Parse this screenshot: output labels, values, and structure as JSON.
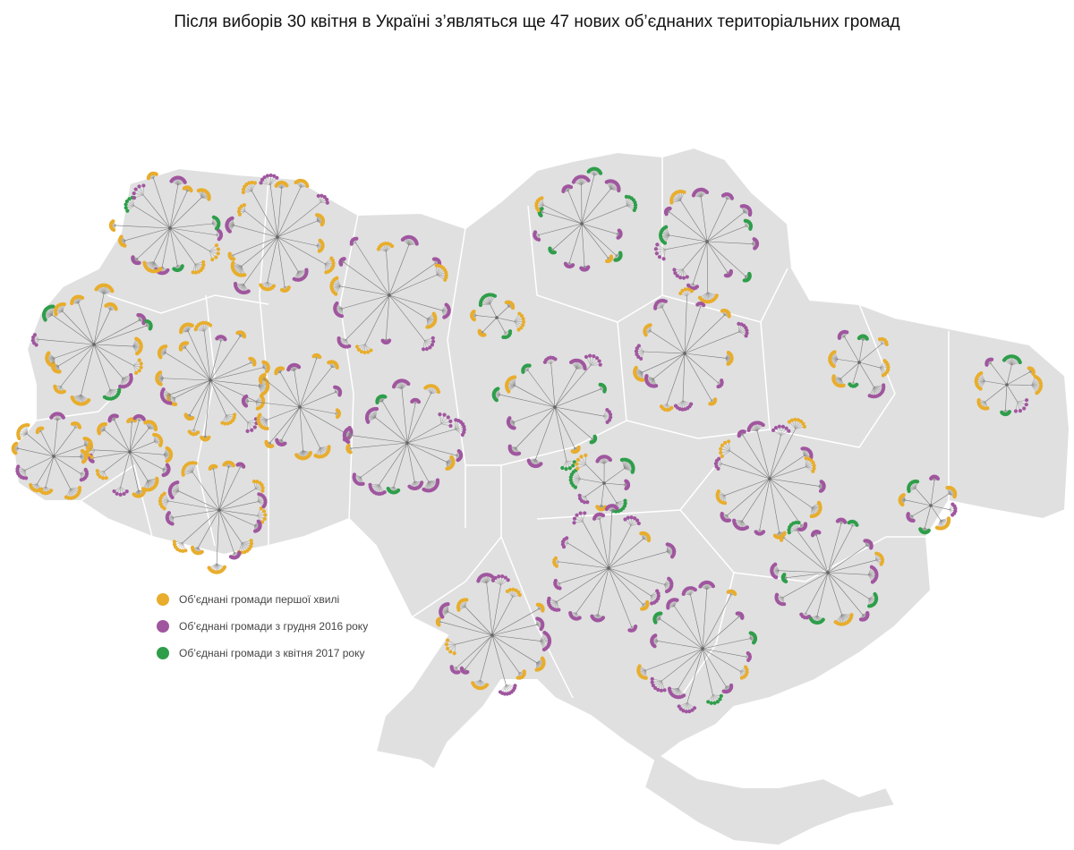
{
  "title": "Після виборів 30 квітня в Україні з’являться ще 47 нових об’єднаних територіальних громад",
  "colors": {
    "first_wave": "#e8ad2c",
    "dec_2016": "#a0569f",
    "apr_2017": "#2e9e4a",
    "territory": "#e0e0e0",
    "border": "#ffffff",
    "line": "#777777"
  },
  "legend": [
    {
      "label": "Об’єднані громади першої хвилі",
      "color": "#e8ad2c"
    },
    {
      "label": "Об’єднані громади з грудня 2016 року",
      "color": "#a0569f"
    },
    {
      "label": "Об’єднані громади з квітня 2017 року",
      "color": "#2e9e4a"
    }
  ],
  "clusters": [
    {
      "region": "volyn",
      "mix": [
        "dec_2016",
        "first_wave",
        "first_wave",
        "apr_2017",
        "dec_2016",
        "first_wave"
      ]
    },
    {
      "region": "rivne",
      "mix": [
        "first_wave",
        "first_wave",
        "dec_2016",
        "first_wave",
        "first_wave",
        "dec_2016"
      ]
    },
    {
      "region": "zhytomyr",
      "mix": [
        "dec_2016",
        "first_wave",
        "dec_2016",
        "dec_2016",
        "first_wave",
        "dec_2016"
      ]
    },
    {
      "region": "lviv",
      "mix": [
        "first_wave",
        "first_wave",
        "dec_2016",
        "apr_2017",
        "first_wave",
        "first_wave"
      ]
    },
    {
      "region": "ternopil",
      "mix": [
        "first_wave",
        "first_wave",
        "dec_2016",
        "first_wave",
        "first_wave",
        "first_wave"
      ]
    },
    {
      "region": "khmelnytskyi",
      "mix": [
        "first_wave",
        "dec_2016",
        "first_wave",
        "first_wave",
        "dec_2016",
        "first_wave"
      ]
    },
    {
      "region": "vinnytsia",
      "mix": [
        "dec_2016",
        "first_wave",
        "dec_2016",
        "dec_2016",
        "apr_2017",
        "dec_2016"
      ]
    },
    {
      "region": "zakarpattia",
      "mix": [
        "first_wave",
        "dec_2016",
        "first_wave",
        "first_wave"
      ]
    },
    {
      "region": "ivano-frankivsk",
      "mix": [
        "first_wave",
        "dec_2016",
        "first_wave",
        "first_wave",
        "dec_2016"
      ]
    },
    {
      "region": "chernivtsi",
      "mix": [
        "first_wave",
        "dec_2016",
        "first_wave",
        "dec_2016",
        "first_wave",
        "first_wave"
      ]
    },
    {
      "region": "kyiv",
      "mix": [
        "first_wave",
        "apr_2017",
        "first_wave"
      ]
    },
    {
      "region": "chernihiv",
      "mix": [
        "dec_2016",
        "apr_2017",
        "first_wave",
        "dec_2016",
        "dec_2016",
        "apr_2017"
      ]
    },
    {
      "region": "sumy",
      "mix": [
        "dec_2016",
        "apr_2017",
        "dec_2016",
        "first_wave",
        "dec_2016",
        "dec_2016"
      ]
    },
    {
      "region": "poltava",
      "mix": [
        "first_wave",
        "dec_2016",
        "first_wave",
        "dec_2016",
        "first_wave",
        "dec_2016"
      ]
    },
    {
      "region": "cherkasy",
      "mix": [
        "dec_2016",
        "apr_2017",
        "first_wave",
        "apr_2017",
        "dec_2016",
        "dec_2016"
      ]
    },
    {
      "region": "kharkiv",
      "mix": [
        "first_wave",
        "dec_2016",
        "apr_2017",
        "first_wave"
      ]
    },
    {
      "region": "luhansk",
      "mix": [
        "first_wave",
        "dec_2016",
        "apr_2017",
        "first_wave"
      ]
    },
    {
      "region": "kirovohrad",
      "mix": [
        "dec_2016",
        "apr_2017",
        "first_wave"
      ]
    },
    {
      "region": "dnipropetrovsk",
      "mix": [
        "dec_2016",
        "first_wave",
        "dec_2016",
        "first_wave",
        "dec_2016",
        "dec_2016"
      ]
    },
    {
      "region": "donetsk",
      "mix": [
        "dec_2016",
        "first_wave",
        "apr_2017"
      ]
    },
    {
      "region": "mykolaiv",
      "mix": [
        "dec_2016",
        "dec_2016",
        "first_wave",
        "dec_2016",
        "dec_2016",
        "dec_2016"
      ]
    },
    {
      "region": "zaporizhzhia",
      "mix": [
        "dec_2016",
        "apr_2017",
        "dec_2016",
        "first_wave",
        "apr_2017",
        "dec_2016"
      ]
    },
    {
      "region": "odesa",
      "mix": [
        "dec_2016",
        "first_wave",
        "first_wave",
        "dec_2016",
        "first_wave",
        "dec_2016"
      ]
    },
    {
      "region": "kherson",
      "mix": [
        "dec_2016",
        "first_wave",
        "dec_2016",
        "apr_2017",
        "dec_2016",
        "dec_2016"
      ]
    }
  ]
}
